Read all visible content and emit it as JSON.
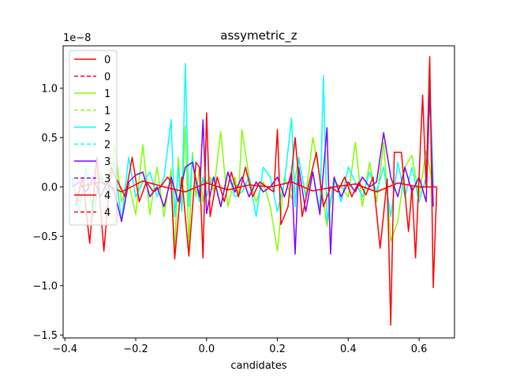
{
  "chart_data": {
    "type": "line",
    "title": "assymetric_z",
    "xlabel": "candidates",
    "ylabel": "",
    "y_offset_label": "1e−8",
    "y_scale": 1e-08,
    "xlim": [
      -0.405,
      0.7
    ],
    "ylim": [
      -1.53,
      1.43
    ],
    "xticks": [
      -0.4,
      -0.2,
      0.0,
      0.2,
      0.4,
      0.6
    ],
    "xtick_labels": [
      "−0.4",
      "−0.2",
      "0.0",
      "0.2",
      "0.4",
      "0.6"
    ],
    "yticks": [
      -1.5,
      -1.0,
      -0.5,
      0.0,
      0.5,
      1.0
    ],
    "ytick_labels": [
      "−1.5",
      "−1.0",
      "−0.5",
      "0.0",
      "0.5",
      "1.0"
    ],
    "grid": false,
    "legend_position": "upper-left",
    "legend": [
      {
        "label": "0",
        "color": "#ff0000",
        "style": "solid"
      },
      {
        "label": "0",
        "color": "#ff0000",
        "style": "dashed"
      },
      {
        "label": "1",
        "color": "#80ff00",
        "style": "solid"
      },
      {
        "label": "1",
        "color": "#80ff00",
        "style": "dashed"
      },
      {
        "label": "2",
        "color": "#00ffff",
        "style": "solid"
      },
      {
        "label": "2",
        "color": "#00ffff",
        "style": "dashed"
      },
      {
        "label": "3",
        "color": "#8000ff",
        "style": "solid"
      },
      {
        "label": "3",
        "color": "#8000ff",
        "style": "dashed"
      },
      {
        "label": "4",
        "color": "#ff0000",
        "style": "solid"
      },
      {
        "label": "4",
        "color": "#ff0000",
        "style": "dashed"
      }
    ],
    "series": [
      {
        "name": "1",
        "color": "#80ff00",
        "style": "solid",
        "x": [
          -0.38,
          -0.36,
          -0.34,
          -0.32,
          -0.3,
          -0.28,
          -0.26,
          -0.24,
          -0.22,
          -0.2,
          -0.18,
          -0.16,
          -0.14,
          -0.12,
          -0.1,
          -0.09,
          -0.08,
          -0.07,
          -0.06,
          -0.05,
          -0.04,
          -0.03,
          -0.02,
          -0.01,
          0.0,
          0.01,
          0.02,
          0.04,
          0.06,
          0.08,
          0.09,
          0.1,
          0.12,
          0.14,
          0.16,
          0.18,
          0.2,
          0.22,
          0.24,
          0.26,
          0.28,
          0.3,
          0.32,
          0.34,
          0.36,
          0.38,
          0.4,
          0.42,
          0.44,
          0.46,
          0.48,
          0.5,
          0.52,
          0.54,
          0.56,
          0.58,
          0.6,
          0.62,
          0.64
        ],
        "y": [
          0.05,
          -0.15,
          0.1,
          -0.2,
          0.15,
          -0.1,
          0.42,
          -0.15,
          0.05,
          -0.28,
          0.43,
          -0.28,
          0.2,
          -0.3,
          0.18,
          -0.68,
          0.3,
          -0.25,
          0.62,
          -0.62,
          0.35,
          -0.1,
          0.2,
          -0.15,
          0.05,
          0.1,
          -0.05,
          0.56,
          -0.2,
          0.1,
          -0.1,
          0.58,
          0.1,
          -0.15,
          0.05,
          -0.2,
          -0.65,
          0.1,
          -0.12,
          0.3,
          -0.1,
          0.5,
          0.1,
          -0.4,
          0.05,
          0.0,
          -0.1,
          0.45,
          -0.2,
          0.25,
          -0.15,
          0.45,
          -0.55,
          -0.35,
          0.2,
          0.32,
          -0.1,
          0.37,
          0.0
        ]
      },
      {
        "name": "2",
        "color": "#00ffff",
        "style": "solid",
        "x": [
          -0.38,
          -0.36,
          -0.34,
          -0.32,
          -0.3,
          -0.28,
          -0.26,
          -0.24,
          -0.22,
          -0.2,
          -0.18,
          -0.16,
          -0.14,
          -0.12,
          -0.1,
          -0.09,
          -0.08,
          -0.07,
          -0.06,
          -0.05,
          -0.04,
          -0.03,
          -0.02,
          -0.01,
          0.0,
          0.01,
          0.02,
          0.04,
          0.06,
          0.08,
          0.1,
          0.12,
          0.14,
          0.16,
          0.18,
          0.2,
          0.22,
          0.24,
          0.25,
          0.26,
          0.28,
          0.3,
          0.32,
          0.33,
          0.34,
          0.36,
          0.38,
          0.4,
          0.42,
          0.44,
          0.46,
          0.48,
          0.5,
          0.52,
          0.54,
          0.56,
          0.58,
          0.6,
          0.62,
          0.63,
          0.64
        ],
        "y": [
          0.1,
          -0.25,
          0.2,
          -0.3,
          0.1,
          -0.05,
          0.25,
          -0.35,
          0.3,
          -0.1,
          0.05,
          0.15,
          -0.1,
          0.1,
          0.68,
          -0.3,
          0.2,
          -0.25,
          1.25,
          -0.2,
          0.3,
          0.05,
          -0.15,
          0.1,
          -0.1,
          0.05,
          0.1,
          -0.2,
          0.15,
          -0.1,
          -0.05,
          0.1,
          -0.3,
          0.2,
          0.1,
          -0.25,
          0.05,
          0.7,
          -0.2,
          0.3,
          -0.1,
          0.15,
          -0.25,
          1.13,
          -0.35,
          0.1,
          -0.15,
          0.2,
          0.05,
          -0.1,
          0.15,
          -0.05,
          0.2,
          -0.3,
          0.25,
          -0.1,
          0.2,
          -0.15,
          0.1,
          1.2,
          0.0
        ]
      },
      {
        "name": "3",
        "color": "#8000ff",
        "style": "solid",
        "x": [
          -0.38,
          -0.36,
          -0.34,
          -0.32,
          -0.3,
          -0.28,
          -0.26,
          -0.24,
          -0.22,
          -0.2,
          -0.18,
          -0.16,
          -0.14,
          -0.12,
          -0.1,
          -0.08,
          -0.06,
          -0.04,
          -0.02,
          -0.01,
          0.0,
          0.02,
          0.04,
          0.06,
          0.08,
          0.1,
          0.12,
          0.14,
          0.16,
          0.18,
          0.2,
          0.22,
          0.24,
          0.25,
          0.26,
          0.28,
          0.3,
          0.32,
          0.34,
          0.35,
          0.36,
          0.38,
          0.4,
          0.42,
          0.44,
          0.46,
          0.48,
          0.5,
          0.52,
          0.54,
          0.56,
          0.58,
          0.6,
          0.62,
          0.63,
          0.64
        ],
        "y": [
          0.0,
          0.05,
          -0.05,
          0.1,
          -0.1,
          0.05,
          -0.05,
          -0.35,
          0.05,
          0.12,
          0.15,
          -0.1,
          0.0,
          -0.2,
          0.1,
          -0.15,
          0.2,
          0.25,
          -0.1,
          0.68,
          -0.27,
          0.1,
          -0.2,
          0.15,
          -0.05,
          0.1,
          -0.1,
          0.05,
          -0.05,
          0.0,
          0.1,
          -0.1,
          0.15,
          -0.68,
          0.2,
          -0.25,
          0.15,
          -0.28,
          0.6,
          -0.68,
          0.1,
          -0.1,
          0.05,
          -0.05,
          0.1,
          0.0,
          0.05,
          0.55,
          0.1,
          -0.1,
          0.2,
          -0.05,
          0.1,
          -0.15,
          0.98,
          -0.2
        ]
      },
      {
        "name": "0",
        "color": "#ff0000",
        "style": "solid",
        "x": [
          -0.37,
          -0.35,
          -0.33,
          -0.31,
          -0.29,
          -0.27,
          -0.25,
          -0.23,
          -0.21,
          -0.19,
          -0.17,
          -0.15,
          -0.13,
          -0.11,
          -0.1,
          -0.09,
          -0.07,
          -0.05,
          -0.03,
          -0.02,
          -0.01,
          0.0,
          0.01,
          0.03,
          0.05,
          0.07,
          0.09,
          0.11,
          0.13,
          0.15,
          0.17,
          0.19,
          0.2,
          0.21,
          0.23,
          0.25,
          0.27,
          0.29,
          0.31,
          0.33,
          0.35,
          0.37,
          0.39,
          0.41,
          0.43,
          0.45,
          0.47,
          0.49,
          0.51,
          0.52,
          0.53,
          0.55,
          0.57,
          0.58,
          0.59,
          0.61,
          0.62,
          0.63,
          0.64,
          0.65
        ],
        "y": [
          -0.2,
          0.1,
          -0.57,
          0.3,
          -0.65,
          0.2,
          0.05,
          -0.1,
          0.3,
          -0.15,
          0.05,
          -0.05,
          0.0,
          0.1,
          0.05,
          -0.73,
          0.1,
          -0.7,
          0.25,
          0.2,
          -0.72,
          0.75,
          -0.3,
          0.1,
          -0.15,
          0.15,
          -0.1,
          0.2,
          -0.1,
          0.05,
          0.0,
          -0.05,
          0.58,
          -0.38,
          -0.2,
          0.5,
          -0.3,
          0.05,
          0.35,
          -0.2,
          0.0,
          -0.05,
          0.1,
          -0.1,
          0.05,
          -0.08,
          0.1,
          -0.62,
          0.08,
          -1.4,
          0.35,
          0.35,
          -0.45,
          0.0,
          -0.72,
          0.93,
          0.0,
          1.32,
          -1.02,
          0.0
        ]
      },
      {
        "name": "4",
        "color": "#ff0000",
        "style": "solid",
        "x": [
          -0.36,
          -0.3,
          -0.24,
          -0.18,
          -0.12,
          -0.06,
          0.0,
          0.06,
          0.12,
          0.18,
          0.24,
          0.3,
          0.36,
          0.42,
          0.48,
          0.54,
          0.6,
          0.65
        ],
        "y": [
          0.0,
          0.05,
          -0.05,
          0.06,
          0.0,
          -0.05,
          0.04,
          -0.03,
          0.02,
          0.0,
          0.05,
          -0.04,
          0.0,
          0.03,
          -0.05,
          0.04,
          0.0,
          0.0
        ]
      }
    ]
  }
}
